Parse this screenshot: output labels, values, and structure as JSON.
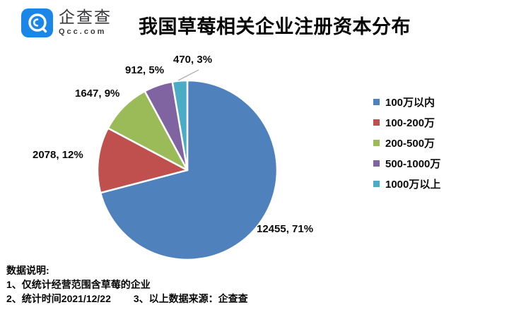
{
  "logo": {
    "brand": "企查查",
    "domain": "Qcc.com",
    "badge_color": "#1a87e8"
  },
  "title": "我国草莓相关企业注册资本分布",
  "chart_data": {
    "type": "pie",
    "title": "我国草莓相关企业注册资本分布",
    "categories": [
      "100万以内",
      "100-200万",
      "200-500万",
      "500-1000万",
      "1000万以上"
    ],
    "values": [
      12455,
      2078,
      1647,
      912,
      470
    ],
    "percents": [
      71,
      12,
      9,
      5,
      3
    ],
    "data_labels": [
      "12455, 71%",
      "2078, 12%",
      "1647, 9%",
      "912, 5%",
      "470, 3%"
    ],
    "colors": [
      "#4F81BD",
      "#C0504D",
      "#9BBB59",
      "#8064A2",
      "#4BACC6"
    ],
    "legend_position": "right",
    "start_angle_deg": 0,
    "direction": "clockwise",
    "slice_border_color": "#ffffff"
  },
  "footnote": {
    "heading": "数据说明:",
    "line1": "1、仅统计经营范围含草莓的企业",
    "line2a": "2、统计时间2021/12/22",
    "line2b": "3、以上数据来源：企查查"
  }
}
